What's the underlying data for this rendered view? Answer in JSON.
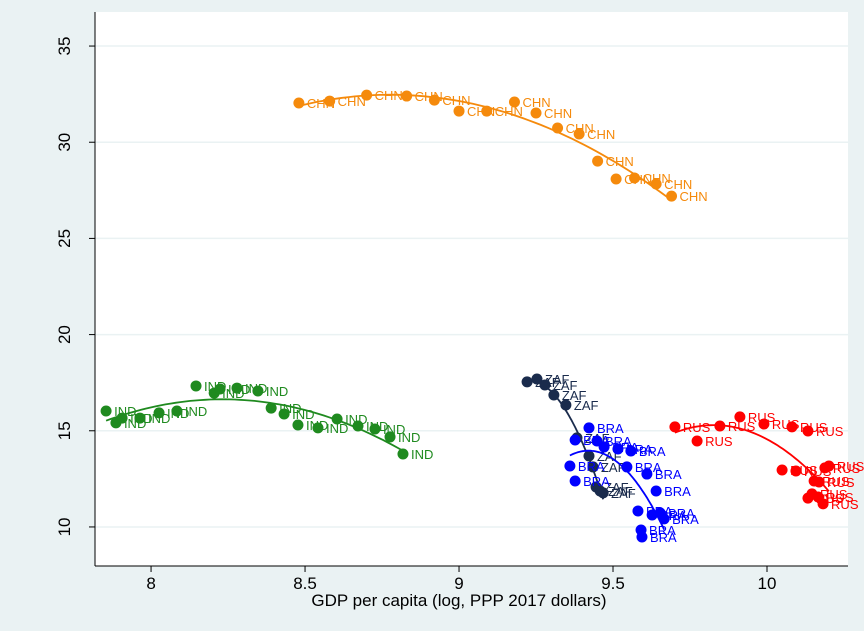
{
  "chart_data": {
    "type": "scatter",
    "x_label": "GDP per capita (log, PPP 2017 dollars)",
    "xlim": [
      7.818,
      10.263
    ],
    "xticks": [
      8,
      {
        "value": 8.5,
        "label": "8.5"
      },
      9,
      {
        "value": 9.5,
        "label": "9.5"
      },
      10
    ],
    "ylim": [
      7.97,
      36.77
    ],
    "yticks": [
      10,
      15,
      20,
      25,
      30,
      35
    ],
    "grid": true,
    "fit": "quadratic",
    "series": [
      {
        "name": "CHN",
        "color": "#f58a0c",
        "x": [
          8.48,
          8.58,
          8.7,
          8.83,
          8.92,
          9.0,
          9.09,
          9.18,
          9.25,
          9.32,
          9.39,
          9.45,
          9.51,
          9.57,
          9.64,
          9.69
        ],
        "values": [
          32.04,
          32.14,
          32.45,
          32.4,
          32.19,
          31.62,
          31.62,
          32.09,
          31.52,
          30.74,
          30.43,
          29.02,
          28.09,
          28.14,
          27.83,
          27.2
        ]
      },
      {
        "name": "IND",
        "color": "#1f8a1f",
        "x": [
          7.854,
          7.886,
          7.906,
          7.964,
          8.026,
          8.084,
          8.146,
          8.205,
          8.224,
          8.279,
          8.347,
          8.39,
          8.432,
          8.477,
          8.542,
          8.604,
          8.672,
          8.727,
          8.776,
          8.818
        ],
        "values": [
          16.03,
          15.41,
          15.66,
          15.66,
          15.93,
          16.03,
          17.33,
          16.96,
          17.17,
          17.22,
          17.07,
          16.18,
          15.87,
          15.3,
          15.15,
          15.61,
          15.25,
          15.09,
          14.68,
          13.79
        ]
      },
      {
        "name": "ZAF",
        "color": "#1a2b4c",
        "x": [
          9.221,
          9.253,
          9.279,
          9.308,
          9.347,
          9.383,
          9.422,
          9.435,
          9.445,
          9.458,
          9.468
        ],
        "values": [
          17.54,
          17.69,
          17.38,
          16.86,
          16.34,
          14.63,
          13.69,
          13.12,
          12.08,
          11.87,
          11.77
        ]
      },
      {
        "name": "BRA",
        "color": "#0000ff",
        "x": [
          9.422,
          9.377,
          9.448,
          9.471,
          9.516,
          9.558,
          9.36,
          9.377,
          9.545,
          9.61,
          9.64,
          9.581,
          9.627,
          9.653,
          9.666,
          9.591,
          9.594
        ],
        "values": [
          15.15,
          14.52,
          14.47,
          14.16,
          14.05,
          13.95,
          13.17,
          12.39,
          13.12,
          12.75,
          11.87,
          10.83,
          10.62,
          10.73,
          10.42,
          9.84,
          9.48
        ]
      },
      {
        "name": "RUS",
        "color": "#ff0000",
        "x": [
          9.701,
          9.847,
          9.773,
          9.912,
          9.99,
          10.081,
          10.133,
          10.049,
          10.094,
          10.201,
          10.188,
          10.153,
          10.169,
          10.146,
          10.166,
          10.182,
          10.133
        ],
        "values": [
          15.2,
          15.25,
          14.47,
          15.72,
          15.35,
          15.2,
          14.99,
          12.96,
          12.91,
          13.17,
          13.07,
          12.39,
          12.34,
          11.72,
          11.56,
          11.2,
          11.5
        ]
      }
    ]
  }
}
